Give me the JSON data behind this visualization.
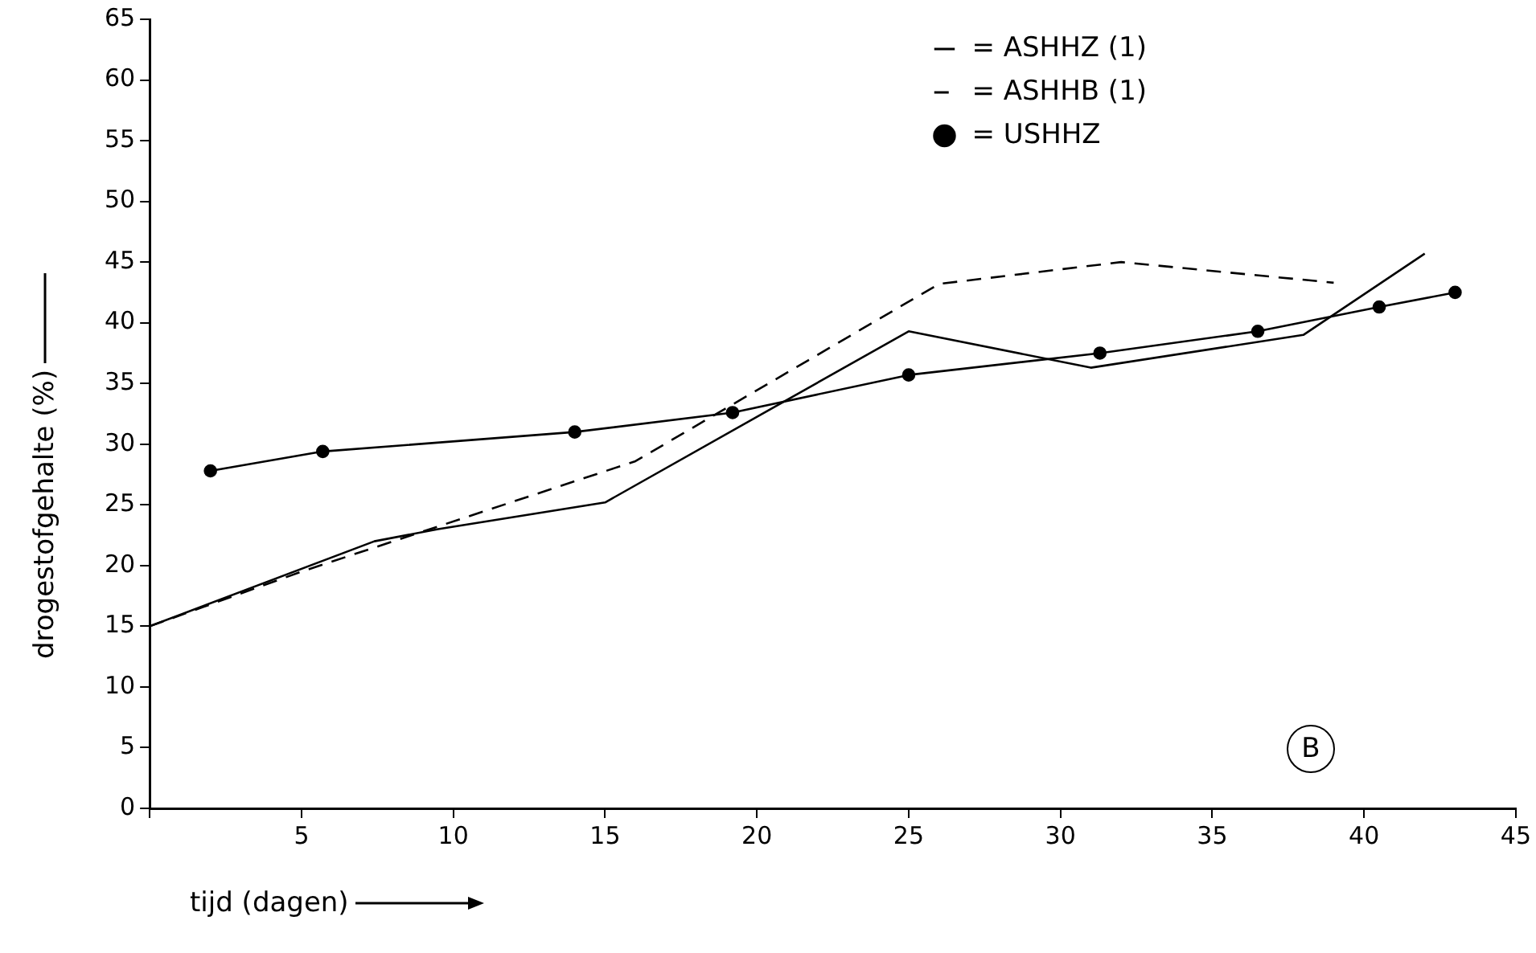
{
  "chart_data": {
    "type": "line",
    "xlabel": "tijd (dagen)",
    "ylabel": "drogestofgehalte (%)",
    "xlim": [
      0,
      45
    ],
    "xticks": [
      {
        "value": 0,
        "label": null
      },
      5,
      10,
      15,
      20,
      25,
      30,
      35,
      40,
      45
    ],
    "ylim": [
      0,
      65
    ],
    "yticks": [
      0,
      5,
      10,
      15,
      20,
      25,
      30,
      35,
      40,
      45,
      50,
      55,
      60,
      65
    ],
    "grid": false,
    "legend": "top right",
    "annotations": [
      "B"
    ],
    "series": [
      {
        "name": "= ASHHZ (1)",
        "color": "#000000",
        "line_style": "solid",
        "marker": "none",
        "x": [
          0,
          7.4,
          9.5,
          15,
          25,
          31,
          38,
          42
        ],
        "values": [
          15,
          22,
          23,
          25.2,
          39.3,
          36.3,
          39,
          45.7
        ]
      },
      {
        "name": "= ASHHB (1)",
        "color": "#000000",
        "line_style": "dashed",
        "marker": "none",
        "x": [
          0,
          5,
          16,
          26,
          32,
          39
        ],
        "values": [
          15,
          19.5,
          28.6,
          43.2,
          45,
          43.3
        ]
      },
      {
        "name": "= USHHZ",
        "color": "#000000",
        "line_style": "solid",
        "marker": "circle",
        "x": [
          2,
          5.7,
          14,
          19.2,
          25,
          31.3,
          36.5,
          40.5,
          43
        ],
        "values": [
          27.8,
          29.4,
          31,
          32.6,
          35.7,
          37.5,
          39.3,
          41.3,
          42.5
        ]
      }
    ]
  }
}
